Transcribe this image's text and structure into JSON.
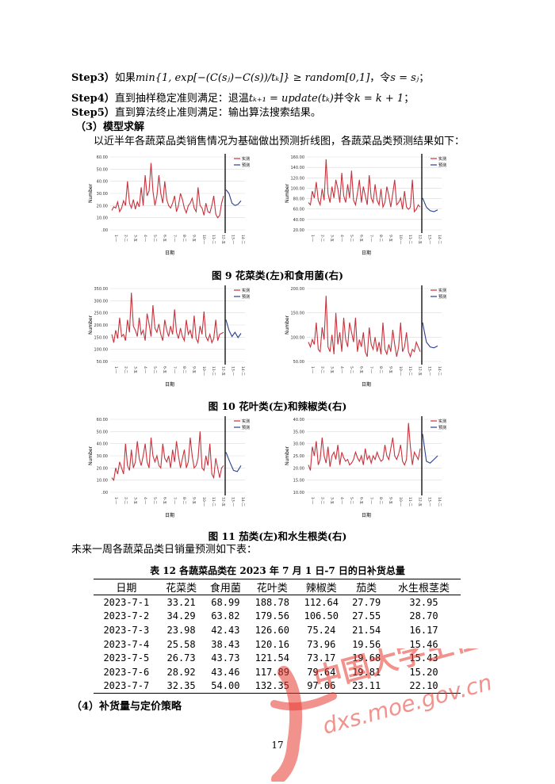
{
  "step3": {
    "label": "Step3）",
    "text_before": "如果",
    "formula": "min{1, exp[−(C(sⱼ)−C(s))/tₖ]} ≥ random[0,1]",
    "text_after": "，令",
    "assign": "s = sⱼ",
    "end": "；"
  },
  "step4": {
    "label": "Step4）",
    "text_before": "直到抽样稳定准则满足：退温",
    "formula": "tₖ₊₁ = update(tₖ)",
    "text_mid": "并令",
    "assign": "k = k + 1",
    "end": "；"
  },
  "step5": {
    "label": "Step5）",
    "text": "直到算法终止准则满足：输出算法搜索结果。"
  },
  "section3_heading": "（3）模型求解",
  "intro": "以近半年各蔬菜品类销售情况为基础做出预测折线图，各蔬菜品类预测结果如下：",
  "legend": {
    "actual": "实测",
    "forecast": "预测"
  },
  "axis": {
    "ylabel": "Number",
    "xlabel": "日期"
  },
  "figure_captions": [
    "图 9 花菜类(左)和食用菌(右)",
    "图 10 花叶类(左)和辣椒类(右)",
    "图 11 茄类(左)和水生根类(右)"
  ],
  "colors": {
    "actual": "#c8323c",
    "forecast": "#2b3f8f",
    "divider": "#000000",
    "grid": "#d9d9d9"
  },
  "chart_data": [
    {
      "type": "line",
      "ylim": [
        0,
        60
      ],
      "yticks": [
        "60.00",
        "50.00",
        "40.00",
        "30.00",
        "20.00",
        "10.00",
        ".00"
      ],
      "series": [
        {
          "name": "实测",
          "values": [
            16,
            19,
            18,
            23,
            15,
            18,
            24,
            20,
            40,
            22,
            18,
            25,
            17,
            23,
            19,
            35,
            20,
            45,
            28,
            32,
            55,
            32,
            20,
            28,
            45,
            30,
            22,
            40,
            25,
            20,
            18,
            22,
            28,
            15,
            20,
            30,
            25,
            18,
            14,
            20,
            22,
            26,
            18,
            15,
            35,
            20,
            18,
            12,
            22,
            15,
            14,
            20,
            28,
            13,
            10,
            12,
            22,
            28
          ]
        },
        {
          "name": "预测",
          "values": [
            33,
            30,
            22,
            20,
            21,
            24
          ]
        }
      ]
    },
    {
      "type": "line",
      "ylim": [
        0,
        160
      ],
      "yticks": [
        "160.00",
        "140.00",
        "120.00",
        "100.00",
        "80.00",
        "60.00",
        "40.00",
        "20.00"
      ],
      "series": [
        {
          "name": "实测",
          "values": [
            60,
            55,
            85,
            70,
            105,
            65,
            55,
            90,
            65,
            155,
            80,
            60,
            95,
            70,
            110,
            90,
            60,
            125,
            75,
            60,
            100,
            70,
            130,
            65,
            55,
            80,
            110,
            60,
            95,
            75,
            55,
            120,
            70,
            60,
            100,
            65,
            55,
            90,
            50,
            60,
            95,
            75,
            50,
            80,
            110,
            55,
            60,
            70,
            45,
            85,
            50,
            45,
            50,
            110,
            40,
            45,
            55,
            50
          ]
        },
        {
          "name": "预测",
          "values": [
            70,
            50,
            42,
            40,
            44
          ]
        }
      ]
    },
    {
      "type": "line",
      "ylim": [
        0,
        350
      ],
      "yticks": [
        "350.00",
        "300.00",
        "250.00",
        "200.00",
        "150.00",
        "100.00",
        "50.00"
      ],
      "series": [
        {
          "name": "实测",
          "values": [
            130,
            90,
            150,
            110,
            210,
            120,
            130,
            100,
            200,
            140,
            330,
            170,
            150,
            120,
            210,
            130,
            150,
            100,
            230,
            180,
            120,
            270,
            160,
            140,
            180,
            130,
            100,
            200,
            150,
            120,
            170,
            130,
            250,
            140,
            110,
            160,
            120,
            100,
            200,
            130,
            150,
            110,
            220,
            110,
            90,
            170,
            130,
            240,
            120,
            100,
            130,
            90,
            110,
            200,
            100,
            130,
            135,
            140
          ]
        },
        {
          "name": "预测",
          "values": [
            200,
            150,
            120,
            140,
            115,
            135
          ]
        }
      ]
    },
    {
      "type": "line",
      "ylim": [
        50,
        200
      ],
      "yticks": [
        "200.00",
        "150.00",
        "100.00",
        "50.00"
      ],
      "series": [
        {
          "name": "实测",
          "values": [
            90,
            80,
            95,
            85,
            130,
            75,
            70,
            120,
            95,
            185,
            80,
            70,
            105,
            65,
            150,
            85,
            110,
            70,
            140,
            95,
            80,
            130,
            110,
            90,
            140,
            70,
            95,
            80,
            110,
            70,
            60,
            120,
            85,
            75,
            100,
            70,
            90,
            65,
            130,
            75,
            65,
            85,
            70,
            115,
            85,
            60,
            80,
            130,
            70,
            80,
            110,
            70,
            60,
            75,
            70,
            90,
            80,
            70
          ]
        },
        {
          "name": "预测",
          "values": [
            130,
            90,
            80,
            78,
            82
          ]
        }
      ]
    },
    {
      "type": "line",
      "ylim": [
        0,
        60
      ],
      "yticks": [
        "60.00",
        "50.00",
        "40.00",
        "30.00",
        "20.00",
        "10.00",
        ".00"
      ],
      "series": [
        {
          "name": "实测",
          "values": [
            12,
            10,
            20,
            15,
            25,
            20,
            15,
            40,
            22,
            18,
            35,
            20,
            25,
            42,
            28,
            22,
            30,
            40,
            25,
            20,
            45,
            30,
            25,
            30,
            22,
            20,
            40,
            28,
            25,
            30,
            20,
            35,
            25,
            42,
            30,
            20,
            28,
            35,
            20,
            25,
            45,
            30,
            20,
            22,
            28,
            50,
            20,
            18,
            30,
            22,
            40,
            15,
            12,
            28,
            20,
            12,
            20,
            22
          ]
        },
        {
          "name": "预测",
          "values": [
            33,
            25,
            18,
            17,
            22
          ]
        }
      ]
    },
    {
      "type": "line",
      "ylim": [
        0,
        40
      ],
      "yticks": [
        "40.00",
        "35.00",
        "30.00",
        "25.00",
        "20.00",
        "15.00",
        "10.00"
      ],
      "series": [
        {
          "name": "实测",
          "values": [
            15,
            12,
            25,
            20,
            28,
            15,
            18,
            30,
            20,
            16,
            25,
            14,
            20,
            22,
            18,
            26,
            15,
            22,
            19,
            17,
            18,
            15,
            16,
            18,
            22,
            19,
            17,
            20,
            15,
            24,
            18,
            20,
            16,
            20,
            18,
            22,
            19,
            17,
            18,
            26,
            20,
            18,
            24,
            30,
            20,
            18,
            21,
            26,
            17,
            15,
            18,
            38,
            25,
            15,
            22,
            20,
            18,
            24
          ]
        },
        {
          "name": "预测",
          "values": [
            32,
            17,
            16,
            18,
            20
          ]
        }
      ]
    }
  ],
  "table_intro": "未来一周各蔬菜品类日销量预测如下表：",
  "table": {
    "title": "表 12 各蔬菜品类在 2023 年 7 月 1 日-7 日的日补货总量",
    "headers": [
      "日期",
      "花菜类",
      "食用菌",
      "花叶类",
      "辣椒类",
      "茄类",
      "水生根茎类"
    ],
    "rows": [
      [
        "2023-7-1",
        "33.21",
        "68.99",
        "188.78",
        "112.64",
        "27.79",
        "32.95"
      ],
      [
        "2023-7-2",
        "34.29",
        "63.82",
        "179.56",
        "106.50",
        "27.55",
        "28.70"
      ],
      [
        "2023-7-3",
        "23.98",
        "42.43",
        "126.60",
        "75.24",
        "21.54",
        "16.17"
      ],
      [
        "2023-7-4",
        "25.58",
        "38.43",
        "120.16",
        "73.96",
        "19.56",
        "15.46"
      ],
      [
        "2023-7-5",
        "26.73",
        "43.73",
        "121.54",
        "73.17",
        "19.68",
        "15.43"
      ],
      [
        "2023-7-6",
        "28.92",
        "43.46",
        "117.89",
        "79.64",
        "19.81",
        "15.20"
      ],
      [
        "2023-7-7",
        "32.35",
        "54.00",
        "132.35",
        "97.06",
        "23.11",
        "22.10"
      ]
    ]
  },
  "section4_heading": "（4）补货量与定价策略",
  "page_number": "17",
  "watermark": {
    "cn": "中国大学生在线",
    "url": "dxs.moe.gov.cn",
    "color": "#e8382f"
  }
}
